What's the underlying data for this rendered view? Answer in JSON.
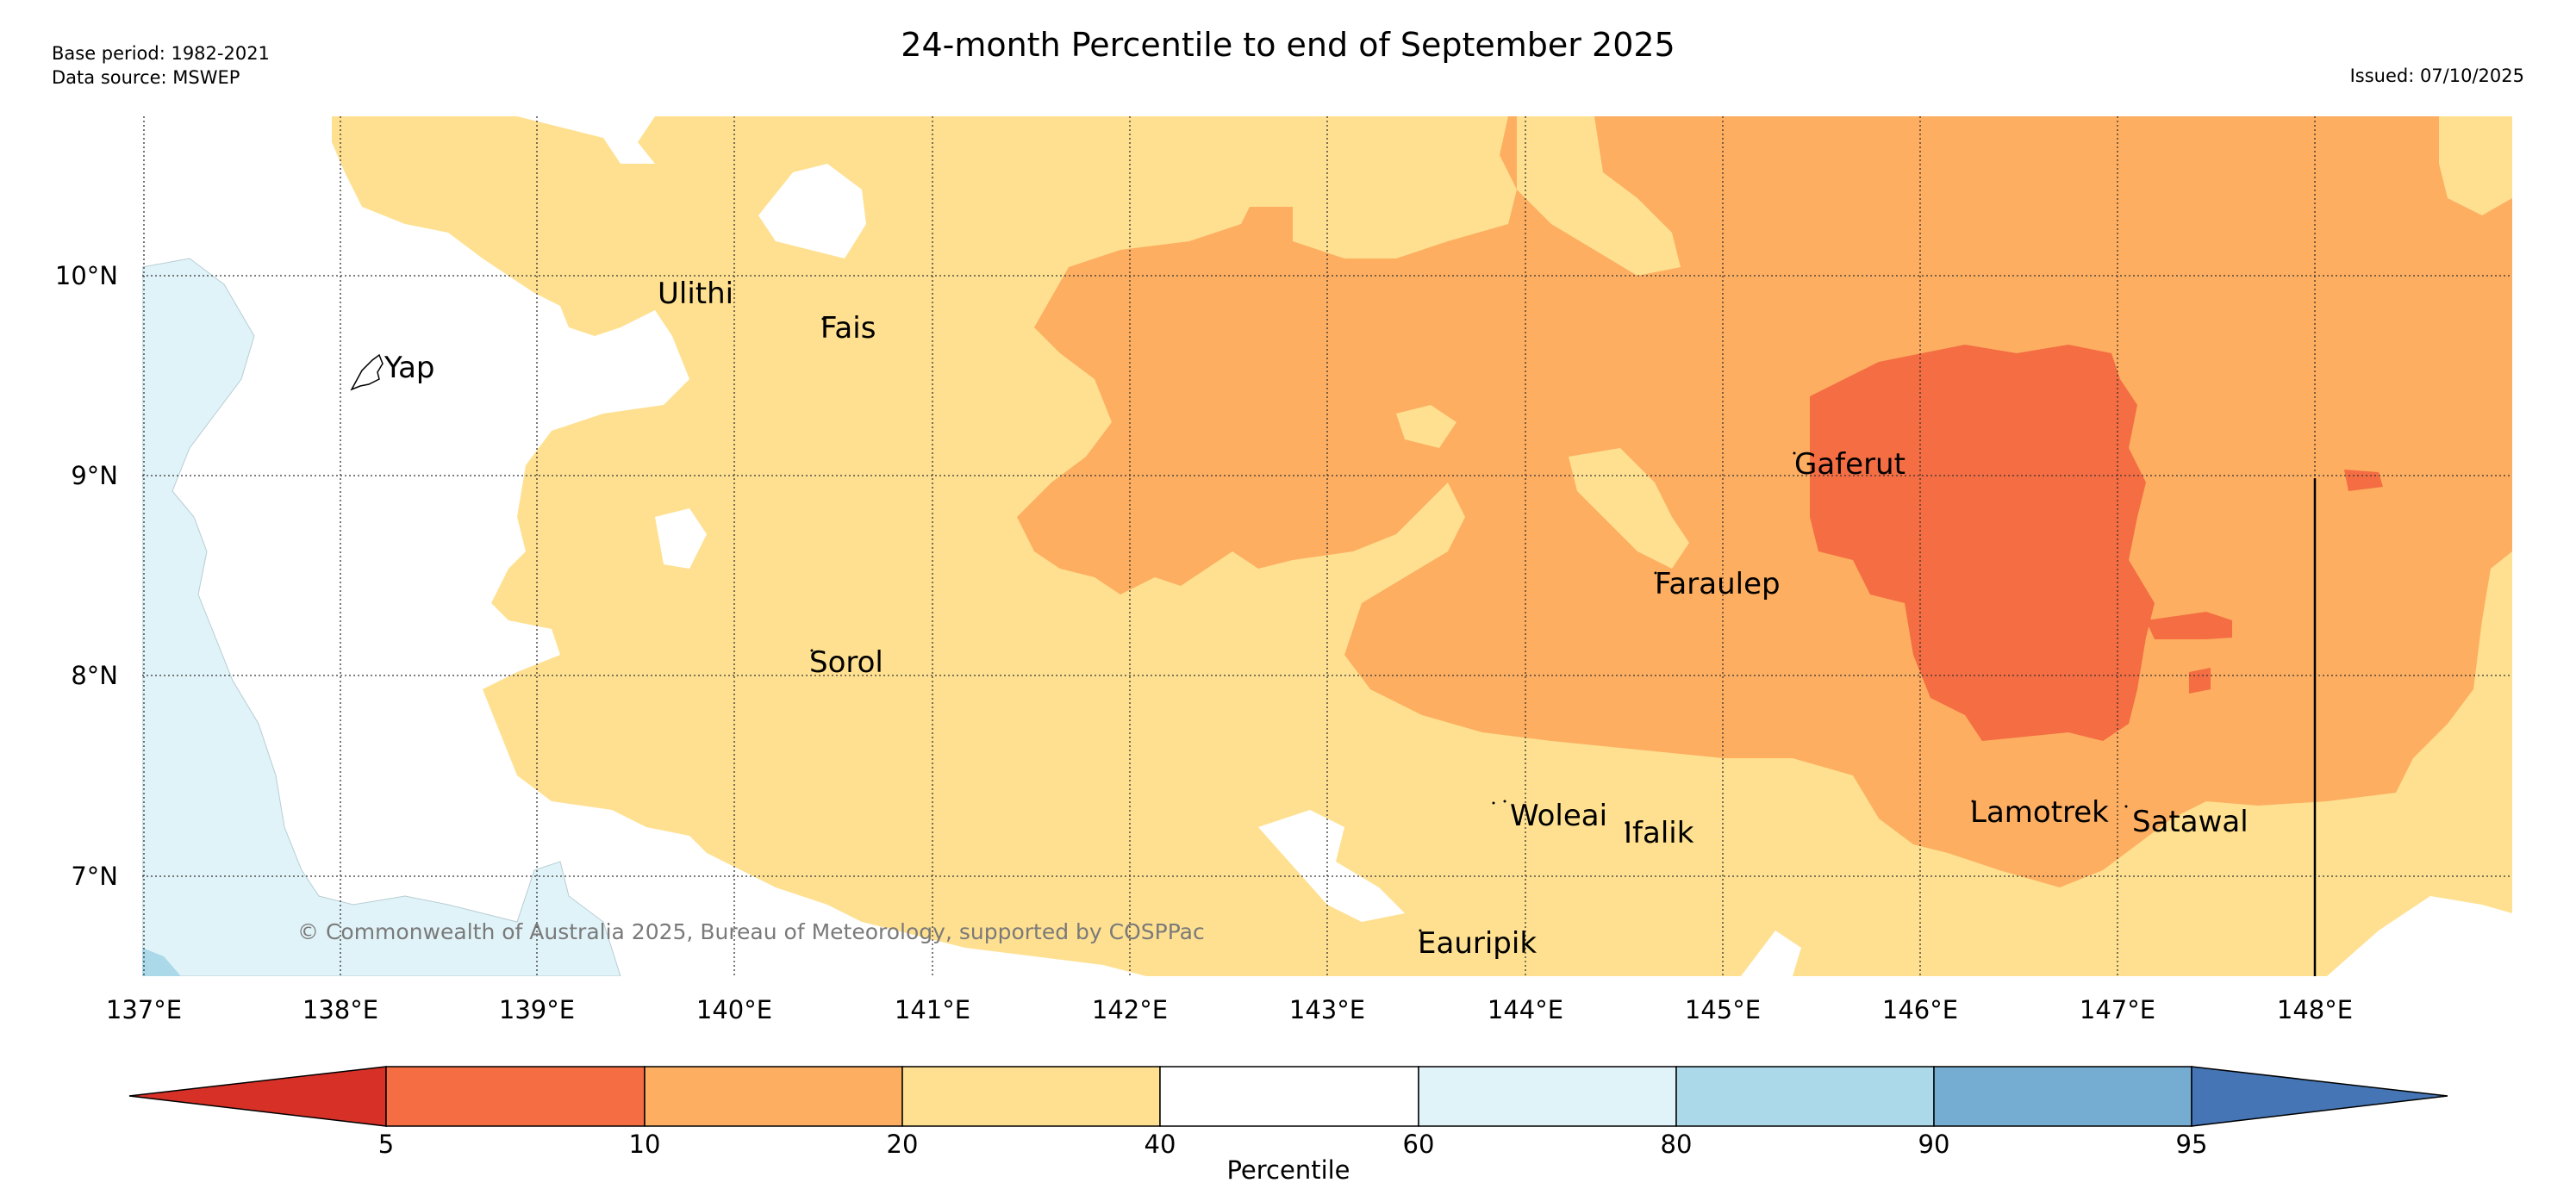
{
  "header": {
    "title": "24-month Percentile to end of September 2025",
    "base_period": "Base period: 1982-2021",
    "data_source": "Data source: MSWEP",
    "issued": "Issued: 07/10/2025"
  },
  "map": {
    "lat_labels": [
      "10°N",
      "9°N",
      "8°N",
      "7°N"
    ],
    "lon_labels": [
      "137°E",
      "138°E",
      "139°E",
      "140°E",
      "141°E",
      "142°E",
      "143°E",
      "144°E",
      "145°E",
      "146°E",
      "147°E",
      "148°E"
    ],
    "copyright": "© Commonwealth of Australia 2025, Bureau of Meteorology, supported by COSPPac",
    "places": {
      "yap": "Yap",
      "ulithi": "Ulithi",
      "fais": "Fais",
      "sorol": "Sorol",
      "gaferut": "Gaferut",
      "faraulep": "Faraulep",
      "woleai": "Woleai",
      "ifalik": "Ifalik",
      "eauripik": "Eauripik",
      "lamotrek": "Lamotrek",
      "satawal": "Satawal"
    }
  },
  "colorbar": {
    "title": "Percentile",
    "ticks": [
      "5",
      "10",
      "20",
      "40",
      "60",
      "80",
      "90",
      "95"
    ],
    "colors": [
      "#d73027",
      "#f46d43",
      "#fdae61",
      "#fee090",
      "#ffffff",
      "#e0f3f8",
      "#abd9e9",
      "#74add1",
      "#4575b4"
    ]
  }
}
